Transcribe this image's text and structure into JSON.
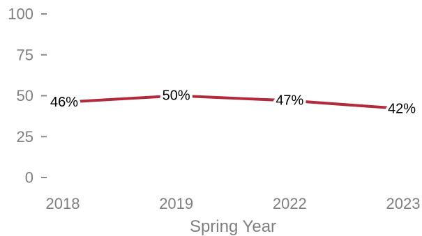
{
  "chart_data": {
    "type": "line",
    "categories": [
      "2018",
      "2019",
      "2022",
      "2023"
    ],
    "series": [
      {
        "values": [
          46,
          50,
          47,
          42
        ],
        "labels": [
          "46%",
          "50%",
          "47%",
          "42%"
        ],
        "color": "#b22a3c"
      }
    ],
    "xlabel": "Spring Year",
    "ylabel": "",
    "ylim": [
      0,
      100
    ],
    "yticks": [
      0,
      25,
      50,
      75,
      100
    ],
    "ytick_labels": [
      "0",
      "25",
      "50",
      "75",
      "100"
    ],
    "grid": false,
    "legend": "none"
  }
}
